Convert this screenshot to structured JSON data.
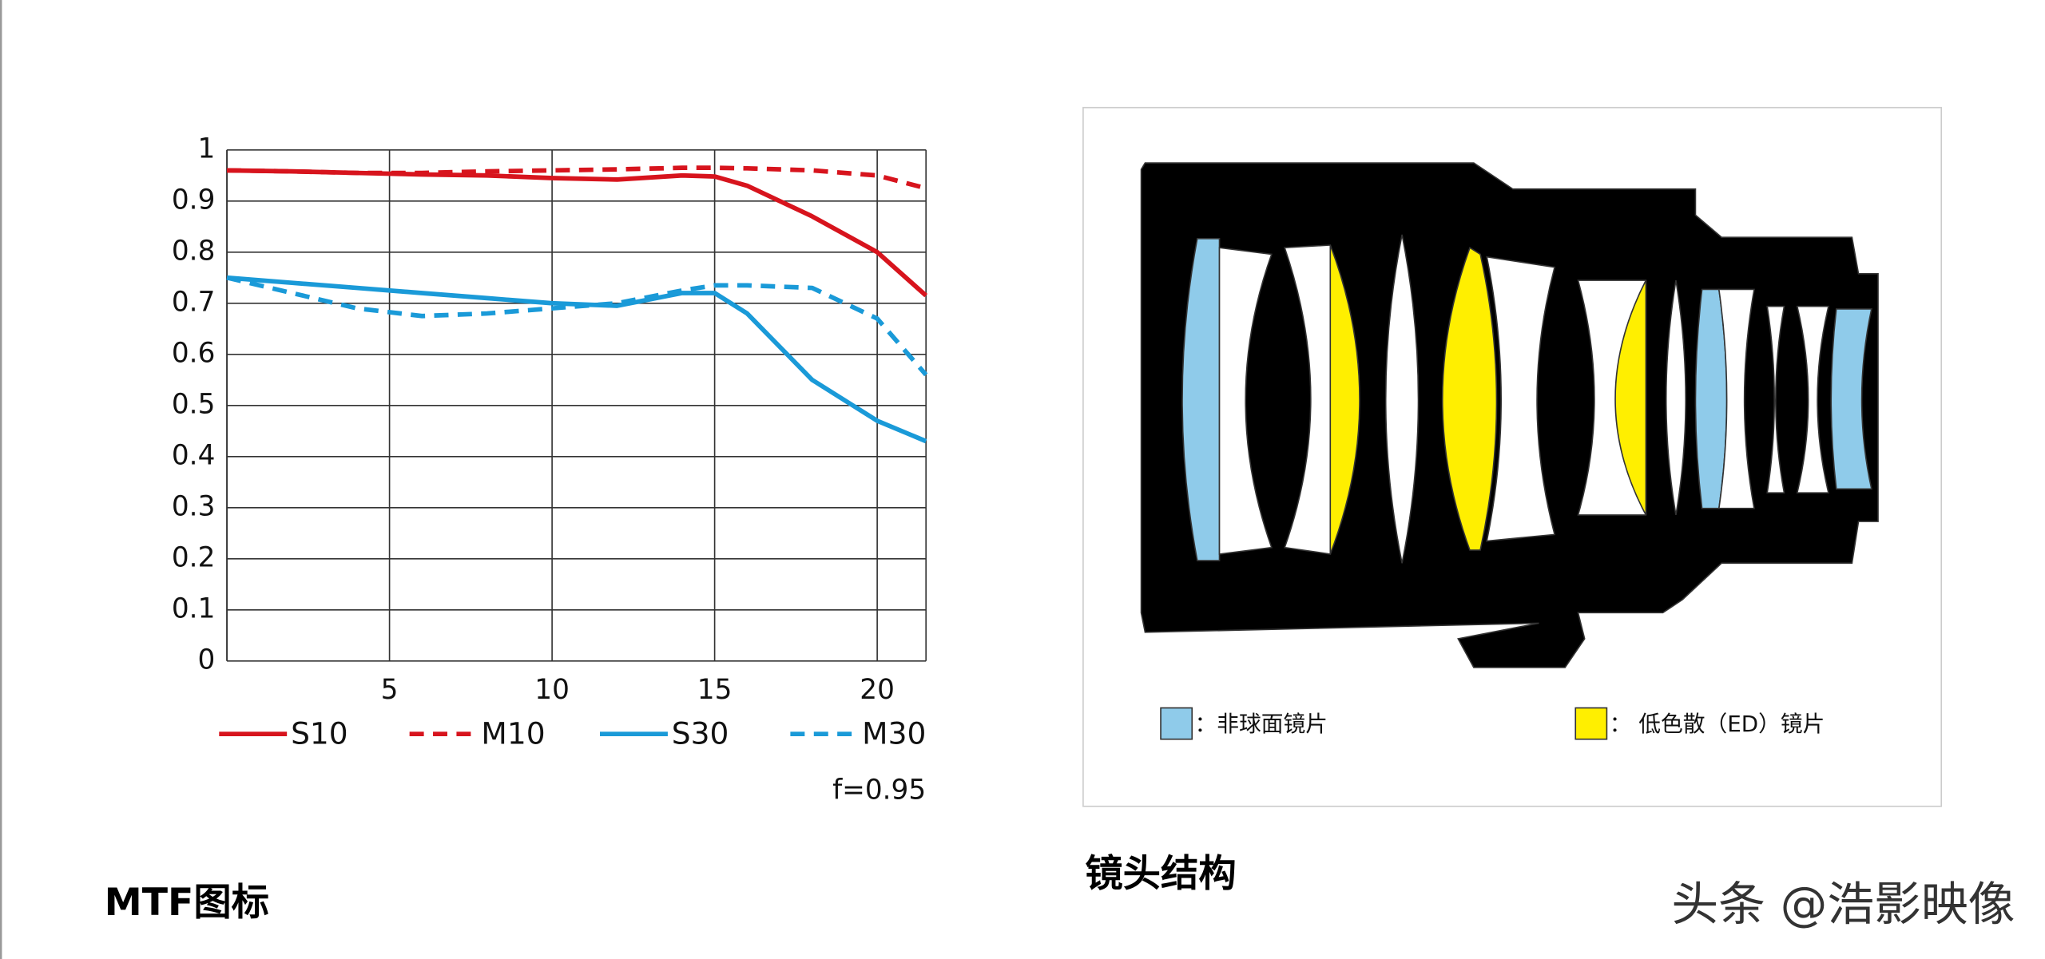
{
  "chart_data": {
    "type": "line",
    "x": [
      0,
      2,
      4,
      6,
      8,
      10,
      12,
      14,
      15,
      16,
      18,
      20,
      21.5
    ],
    "series": [
      {
        "name": "S10",
        "color": "#d7141d",
        "style": "solid",
        "values": [
          0.96,
          0.958,
          0.955,
          0.952,
          0.95,
          0.945,
          0.942,
          0.95,
          0.948,
          0.93,
          0.87,
          0.8,
          0.715
        ]
      },
      {
        "name": "M10",
        "color": "#d7141d",
        "style": "dashed",
        "values": [
          0.96,
          0.958,
          0.955,
          0.955,
          0.958,
          0.96,
          0.962,
          0.965,
          0.965,
          0.964,
          0.96,
          0.95,
          0.925
        ]
      },
      {
        "name": "S30",
        "color": "#1a9ad8",
        "style": "solid",
        "values": [
          0.75,
          0.74,
          0.73,
          0.72,
          0.71,
          0.7,
          0.695,
          0.72,
          0.72,
          0.68,
          0.55,
          0.47,
          0.43
        ]
      },
      {
        "name": "M30",
        "color": "#1a9ad8",
        "style": "dashed",
        "values": [
          0.75,
          0.72,
          0.69,
          0.675,
          0.68,
          0.69,
          0.7,
          0.725,
          0.735,
          0.735,
          0.73,
          0.67,
          0.56
        ]
      }
    ],
    "xlim": [
      0,
      21.5
    ],
    "xticks": [
      5,
      10,
      15,
      20
    ],
    "ylim": [
      0,
      1
    ],
    "yticks": [
      0,
      0.1,
      0.2,
      0.3,
      0.4,
      0.5,
      0.6,
      0.7,
      0.8,
      0.9,
      1
    ],
    "grid": true,
    "legend": "bottom",
    "annotation": "f=0.95"
  },
  "captions": {
    "chart": "MTF图标",
    "diagram": "镜头结构"
  },
  "diagram_legend": [
    {
      "color": "#8fcbea",
      "label": "：非球面镜片"
    },
    {
      "color": "#ffef00",
      "label": "：  低色散（ED）镜片"
    }
  ],
  "watermark": "头条 @浩影映像"
}
